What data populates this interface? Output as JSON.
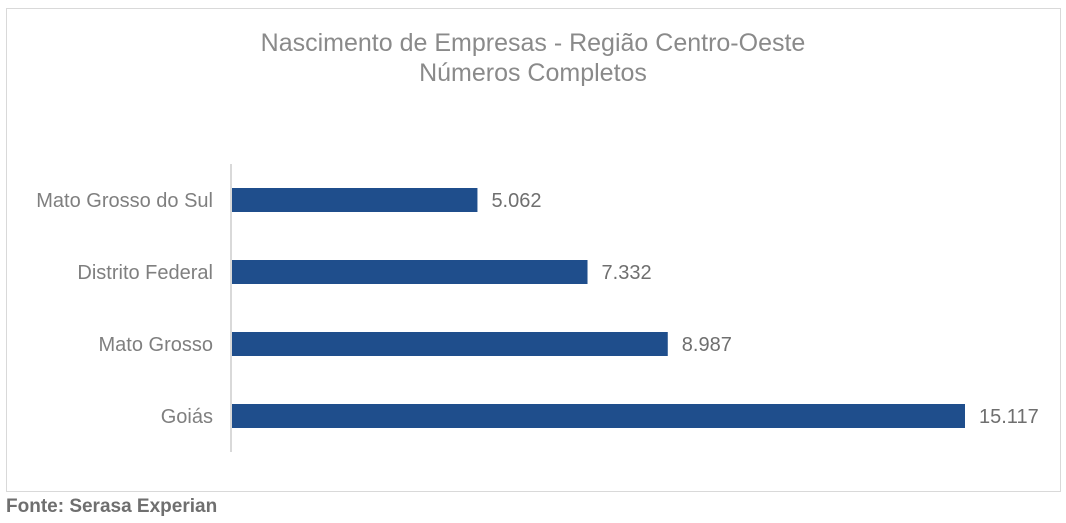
{
  "chart_data": {
    "type": "bar",
    "orientation": "horizontal",
    "title": "Nascimento de Empresas - Região Centro-Oeste",
    "subtitle": "Números Completos",
    "categories": [
      "Mato Grosso do Sul",
      "Distrito Federal",
      "Mato Grosso",
      "Goiás"
    ],
    "values": [
      5062,
      7332,
      8987,
      15117
    ],
    "value_labels": [
      "5.062",
      "7.332",
      "8.987",
      "15.117"
    ],
    "xlim": [
      0,
      15117
    ],
    "grid": false,
    "legend": "none",
    "colors": {
      "bar": "#1f4e8c",
      "axis": "#d9d9d9"
    }
  },
  "footer": {
    "source": "Fonte: Serasa Experian"
  }
}
